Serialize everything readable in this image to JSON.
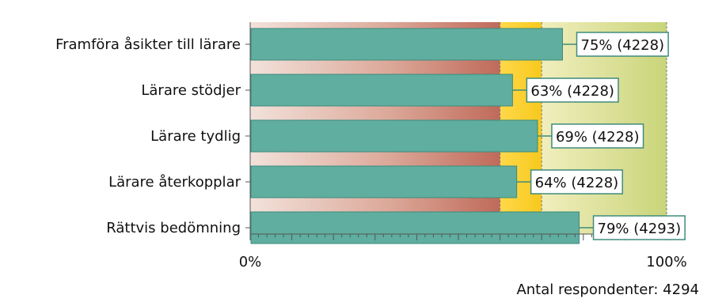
{
  "chart_data": {
    "type": "bar",
    "orientation": "horizontal",
    "categories": [
      "Framföra åsikter till lärare",
      "Lärare stödjer",
      "Lärare tydlig",
      "Lärare återkopplar",
      "Rättvis bedömning"
    ],
    "values": [
      75,
      63,
      69,
      64,
      79
    ],
    "counts": [
      4228,
      4228,
      4228,
      4228,
      4293
    ],
    "value_labels": [
      "75% (4228)",
      "63% (4228)",
      "69% (4228)",
      "64% (4228)",
      "79% (4293)"
    ],
    "xlim": [
      0,
      100
    ],
    "x_tick_labels": [
      "0%",
      "100%"
    ],
    "reference_lines": [
      60,
      70
    ],
    "bar_color": "#5fae9f",
    "grid": false
  },
  "footer": {
    "respondents_text": "Antal respondenter: 4294"
  }
}
